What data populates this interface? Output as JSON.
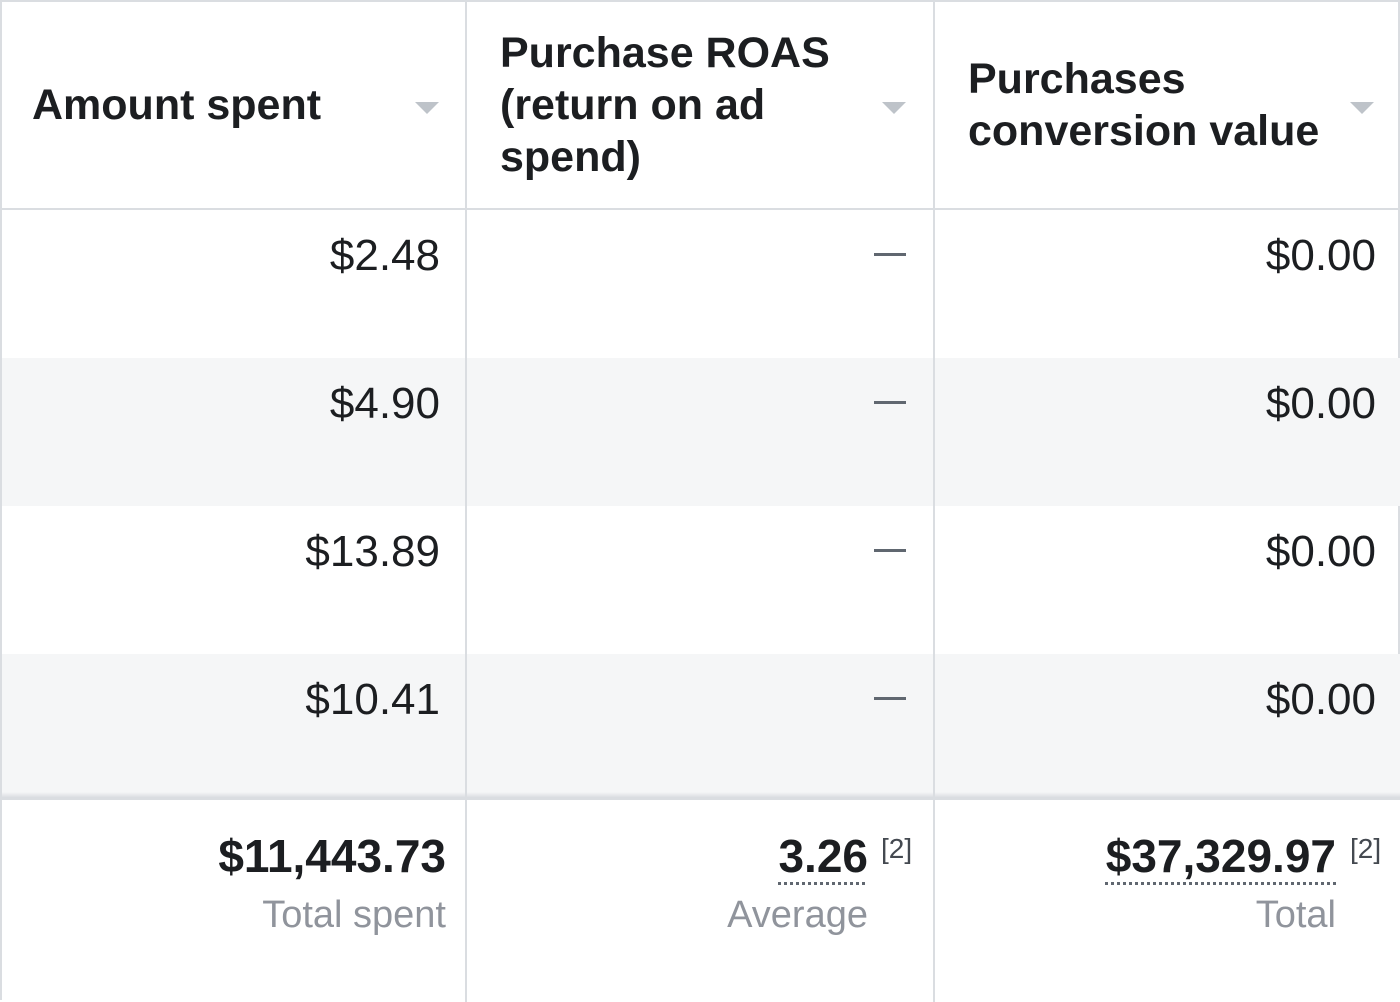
{
  "columns": [
    {
      "label": "Amount spent"
    },
    {
      "label": "Purchase ROAS (return on ad spend)"
    },
    {
      "label": "Purchases conversion value"
    }
  ],
  "rows": [
    {
      "amount_spent": "$2.48",
      "roas": "—",
      "conversion_value": "$0.00"
    },
    {
      "amount_spent": "$4.90",
      "roas": "—",
      "conversion_value": "$0.00"
    },
    {
      "amount_spent": "$13.89",
      "roas": "—",
      "conversion_value": "$0.00"
    },
    {
      "amount_spent": "$10.41",
      "roas": "—",
      "conversion_value": "$0.00"
    }
  ],
  "summary": {
    "amount_spent": {
      "value": "$11,443.73",
      "label": "Total spent"
    },
    "roas": {
      "value": "3.26",
      "note": "[2]",
      "label": "Average"
    },
    "conversion_value": {
      "value": "$37,329.97",
      "note": "[2]",
      "label": "Total"
    }
  },
  "icons": {
    "sort": "chevron-down-icon"
  },
  "colors": {
    "border": "#dadde1",
    "alt_row": "#f5f6f7",
    "muted_text": "#90949c"
  }
}
